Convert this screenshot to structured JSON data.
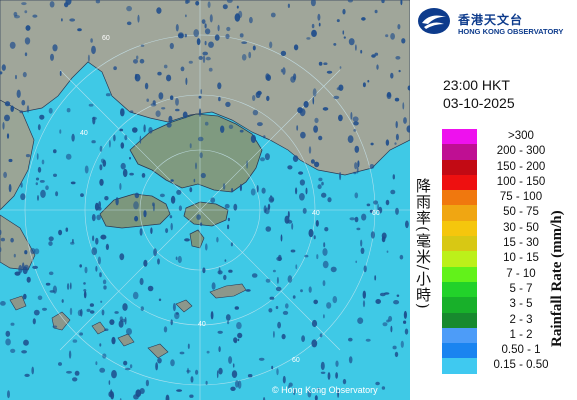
{
  "header": {
    "org_name_zh": "香港天文台",
    "org_name_en": "HONG KONG OBSERVATORY"
  },
  "timestamp": {
    "time": "23:00 HKT",
    "date": "03-10-2025"
  },
  "legend": {
    "title_en": "Rainfall Rate (mm/h)",
    "title_zh": "降雨率(毫米/小時)",
    "items": [
      {
        "label": ">300",
        "color": "#ee11ee"
      },
      {
        "label": "200 - 300",
        "color": "#bf0f93"
      },
      {
        "label": "150 - 200",
        "color": "#c20a14"
      },
      {
        "label": "100 - 150",
        "color": "#ee1010"
      },
      {
        "label": "75 - 100",
        "color": "#f0780e"
      },
      {
        "label": "50 - 75",
        "color": "#f0a612"
      },
      {
        "label": "30 - 50",
        "color": "#f5c60d"
      },
      {
        "label": "15 - 30",
        "color": "#d8c814"
      },
      {
        "label": "10 - 15",
        "color": "#bcf01a"
      },
      {
        "label": "7 - 10",
        "color": "#62f21a"
      },
      {
        "label": "5 - 7",
        "color": "#22d22a"
      },
      {
        "label": "3 - 5",
        "color": "#18b02a"
      },
      {
        "label": "2 - 3",
        "color": "#178a2e"
      },
      {
        "label": "1 - 2",
        "color": "#4d9cf8"
      },
      {
        "label": "0.50 - 1",
        "color": "#1a84f0"
      },
      {
        "label": "0.15 - 0.50",
        "color": "#3fc9f0"
      }
    ]
  },
  "map": {
    "range_ring_labels": [
      "60",
      "40",
      "40",
      "60",
      "60",
      "40"
    ],
    "copyright": "© Hong Kong Observatory",
    "colors": {
      "sea": "#3fc9e6",
      "land": "#8b9a88",
      "rain": "#1d4c8c"
    }
  }
}
